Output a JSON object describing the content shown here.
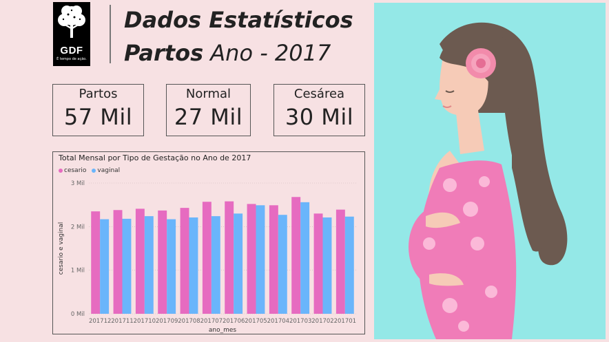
{
  "logo": {
    "text": "GDF",
    "tagline": "É tempo de ação."
  },
  "header": {
    "title_line1": "Dados Estatísticos",
    "title_line2_bold": "Partos",
    "title_line2_rest": "Ano - 2017"
  },
  "cards": [
    {
      "label": "Partos",
      "value": "57 Mil"
    },
    {
      "label": "Normal",
      "value": "27 Mil"
    },
    {
      "label": "Cesárea",
      "value": "30 Mil"
    }
  ],
  "colors": {
    "cesario": "#e66bc0",
    "vaginal": "#6ab5fb",
    "background": "#f7e1e3",
    "illustration_bg": "#94e8e7"
  },
  "chart_data": {
    "type": "bar",
    "title": "Total Mensal por Tipo de Gestação no Ano de 2017",
    "xlabel": "ano_mes",
    "ylabel": "cesario e vaginal",
    "categories": [
      "201712",
      "201711",
      "201710",
      "201709",
      "201708",
      "201707",
      "201706",
      "201705",
      "201704",
      "201703",
      "201702",
      "201701"
    ],
    "series": [
      {
        "name": "cesario",
        "values": [
          2350,
          2380,
          2410,
          2370,
          2430,
          2570,
          2580,
          2520,
          2490,
          2680,
          2300,
          2390
        ]
      },
      {
        "name": "vaginal",
        "values": [
          2170,
          2180,
          2240,
          2170,
          2210,
          2240,
          2300,
          2490,
          2270,
          2560,
          2210,
          2230
        ]
      }
    ],
    "yticks": [
      "0 Mil",
      "1 Mil",
      "2 Mil",
      "3 Mil"
    ],
    "ylim": [
      0,
      3000
    ],
    "grid": true,
    "legend": "top-left"
  }
}
